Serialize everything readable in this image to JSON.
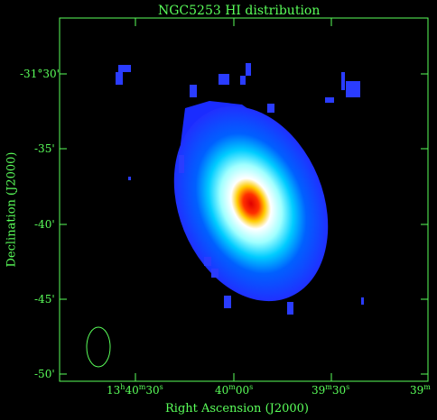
{
  "title": "NGC5253   HI distribution",
  "xlabel": "Right Ascension (J2000)",
  "ylabel": "Declination (J2000)",
  "y_ticks": [
    "-31°30'",
    "-35'",
    "-40'",
    "-45'",
    "-50'"
  ],
  "x_ticks": [
    {
      "h": "13",
      "hu": "h",
      "m": "40",
      "mu": "m",
      "s": "30",
      "su": "s"
    },
    {
      "h": "",
      "hu": "",
      "m": "40",
      "mu": "m",
      "s": "00",
      "su": "s"
    },
    {
      "h": "",
      "hu": "",
      "m": "39",
      "mu": "m",
      "s": "30",
      "su": "s"
    },
    {
      "h": "",
      "hu": "",
      "m": "39",
      "mu": "m",
      "s": "",
      "su": ""
    }
  ],
  "colors": {
    "axis": "#5aff5a",
    "background": "#000000",
    "colormap": [
      "#0000ff",
      "#00ffff",
      "#ffffff",
      "#ffff00",
      "#ff0000"
    ]
  }
}
